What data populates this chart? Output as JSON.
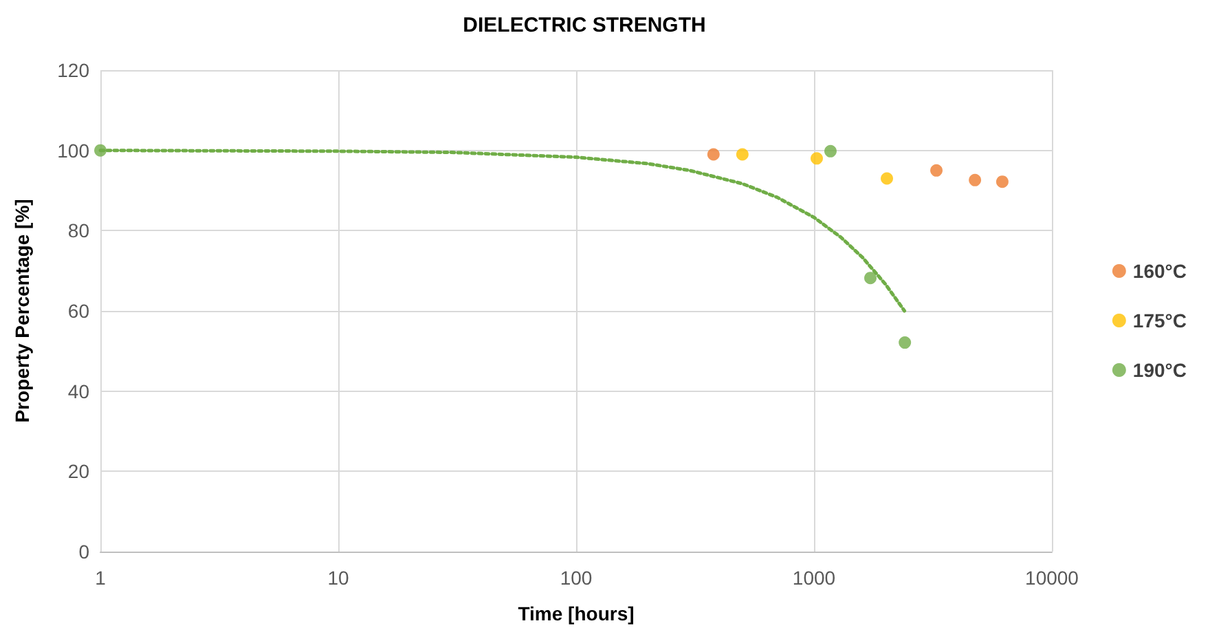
{
  "chart_data": {
    "type": "scatter",
    "title": "DIELECTRIC STRENGTH",
    "xlabel": "Time [hours]",
    "ylabel": "Property Percentage [%]",
    "log": "x",
    "xlim": [
      1,
      10000
    ],
    "xticks": [
      1,
      10,
      100,
      1000,
      10000
    ],
    "ylim": [
      0,
      120
    ],
    "yticks": [
      0,
      20,
      40,
      60,
      80,
      100,
      120
    ],
    "grid": true,
    "legend": "right",
    "marker": "circle",
    "series": [
      {
        "name": "160°C",
        "color": "#ed7d31",
        "x": [
          378,
          3270,
          4750,
          6190
        ],
        "values": [
          99,
          95,
          92.6,
          92.2
        ]
      },
      {
        "name": "175°C",
        "color": "#ffc000",
        "x": [
          500,
          1027,
          2025
        ],
        "values": [
          99,
          98,
          93
        ]
      },
      {
        "name": "190°C",
        "color": "#70ad47",
        "x": [
          1,
          1173,
          1726,
          2410
        ],
        "values": [
          100,
          99.8,
          68.2,
          52.1
        ]
      },
      {
        "type": "line",
        "color": "#70ad47",
        "line_style": "dotted",
        "marker": "none",
        "x": [
          1,
          3,
          10,
          30,
          100,
          200,
          300,
          500,
          700,
          1000,
          1300,
          1600,
          2000,
          2400
        ],
        "values": [
          100,
          99.9,
          99.8,
          99.5,
          98.3,
          96.7,
          95,
          91.7,
          88.3,
          83.3,
          78.3,
          73.3,
          66.6,
          60
        ]
      }
    ]
  }
}
